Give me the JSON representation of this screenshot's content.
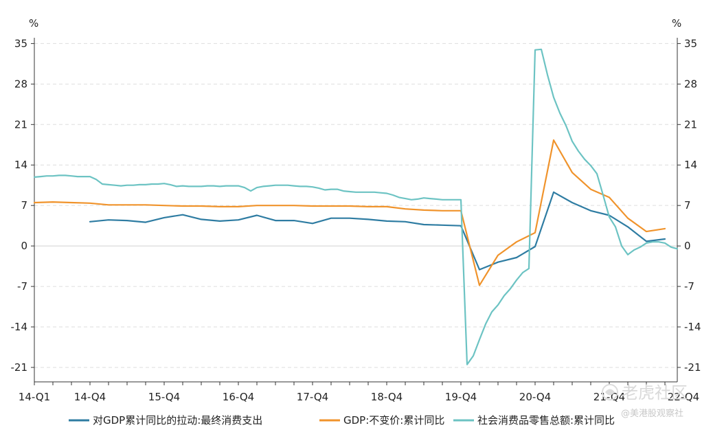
{
  "chart_data": {
    "type": "line",
    "left_unit": "%",
    "right_unit": "%",
    "y_ticks": [
      35,
      28,
      21,
      14,
      7,
      0,
      -7,
      -14,
      -21
    ],
    "ylim": [
      -23.5,
      36
    ],
    "grid": true,
    "legend_position": "bottom",
    "x_tick_labels": [
      "14-Q1",
      "14-Q4",
      "15-Q4",
      "16-Q4",
      "17-Q4",
      "18-Q4",
      "19-Q4",
      "20-Q4",
      "21-Q4",
      "22-Q4"
    ],
    "x_tick_months": [
      0,
      9,
      21,
      33,
      45,
      57,
      69,
      81,
      93,
      105
    ],
    "x_range_months": [
      0,
      104
    ],
    "series": [
      {
        "name": "对GDP累计同比的拉动:最终消费支出",
        "color": "#2e7ca2",
        "x_month": [
          9,
          12,
          15,
          18,
          21,
          24,
          27,
          30,
          33,
          36,
          39,
          42,
          45,
          48,
          51,
          54,
          57,
          60,
          63,
          66,
          69,
          72,
          75,
          78,
          81,
          84,
          87,
          90,
          93,
          96,
          99,
          102
        ],
        "values": [
          4.2,
          4.5,
          4.4,
          4.1,
          4.9,
          5.4,
          4.6,
          4.3,
          4.5,
          5.3,
          4.4,
          4.4,
          3.9,
          4.8,
          4.8,
          4.6,
          4.3,
          4.2,
          3.7,
          3.6,
          3.5,
          -4.1,
          -2.8,
          -2.0,
          -0.1,
          9.3,
          7.5,
          6.1,
          5.3,
          3.3,
          0.8,
          1.2
        ]
      },
      {
        "name": "GDP:不变价:累计同比",
        "color": "#f0932b",
        "x_month": [
          0,
          3,
          6,
          9,
          12,
          15,
          18,
          21,
          24,
          27,
          30,
          33,
          36,
          39,
          42,
          45,
          48,
          51,
          54,
          57,
          60,
          63,
          66,
          69,
          72,
          75,
          78,
          81,
          84,
          87,
          90,
          93,
          96,
          99,
          102
        ],
        "values": [
          7.5,
          7.6,
          7.5,
          7.4,
          7.1,
          7.1,
          7.1,
          7.0,
          6.9,
          6.9,
          6.8,
          6.8,
          7.0,
          7.0,
          7.0,
          6.9,
          6.9,
          6.9,
          6.8,
          6.8,
          6.4,
          6.2,
          6.1,
          6.1,
          -6.8,
          -1.6,
          0.7,
          2.3,
          18.3,
          12.7,
          9.8,
          8.4,
          4.8,
          2.5,
          3.0
        ]
      },
      {
        "name": "社会消费品零售总额:累计同比",
        "color": "#6cc3c3",
        "x_month": [
          0,
          1,
          2,
          3,
          4,
          5,
          6,
          7,
          8,
          9,
          10,
          11,
          12,
          13,
          14,
          15,
          16,
          17,
          18,
          19,
          20,
          21,
          22,
          23,
          24,
          25,
          26,
          27,
          28,
          29,
          30,
          31,
          32,
          33,
          34,
          35,
          36,
          37,
          38,
          39,
          40,
          41,
          42,
          43,
          44,
          45,
          46,
          47,
          48,
          49,
          50,
          51,
          52,
          53,
          54,
          55,
          56,
          57,
          58,
          59,
          60,
          61,
          62,
          63,
          64,
          65,
          66,
          67,
          68,
          69,
          70,
          71,
          72,
          73,
          74,
          75,
          76,
          77,
          78,
          79,
          80,
          81,
          82,
          83,
          84,
          85,
          86,
          87,
          88,
          89,
          90,
          91,
          92,
          93,
          94,
          95,
          96,
          97,
          98,
          99,
          100,
          101,
          102,
          103,
          104
        ],
        "values": [
          11.9,
          12.0,
          12.1,
          12.1,
          12.2,
          12.2,
          12.1,
          12.0,
          12.0,
          12.0,
          11.5,
          10.7,
          10.6,
          10.5,
          10.4,
          10.5,
          10.5,
          10.6,
          10.6,
          10.7,
          10.7,
          10.8,
          10.6,
          10.3,
          10.4,
          10.3,
          10.3,
          10.3,
          10.4,
          10.4,
          10.3,
          10.4,
          10.4,
          10.4,
          10.1,
          9.5,
          10.1,
          10.3,
          10.4,
          10.5,
          10.5,
          10.5,
          10.4,
          10.3,
          10.3,
          10.2,
          10.0,
          9.7,
          9.8,
          9.8,
          9.5,
          9.4,
          9.3,
          9.3,
          9.3,
          9.3,
          9.2,
          9.1,
          8.8,
          8.4,
          8.2,
          8.0,
          8.1,
          8.3,
          8.2,
          8.1,
          8.0,
          8.0,
          8.0,
          8.0,
          -20.5,
          -19.0,
          -16.2,
          -13.5,
          -11.4,
          -10.2,
          -8.6,
          -7.4,
          -5.9,
          -4.6,
          -3.9,
          33.9,
          34.0,
          29.6,
          25.7,
          23.0,
          20.8,
          18.1,
          16.4,
          15.0,
          13.9,
          12.5,
          8.8,
          5.0,
          3.3,
          0.0,
          -1.5,
          -0.7,
          -0.2,
          0.5,
          0.7,
          0.7,
          0.5,
          -0.2,
          -0.5
        ]
      }
    ]
  },
  "watermark": {
    "logo_text": "老虎社区",
    "handle": "@美港股观察社"
  }
}
